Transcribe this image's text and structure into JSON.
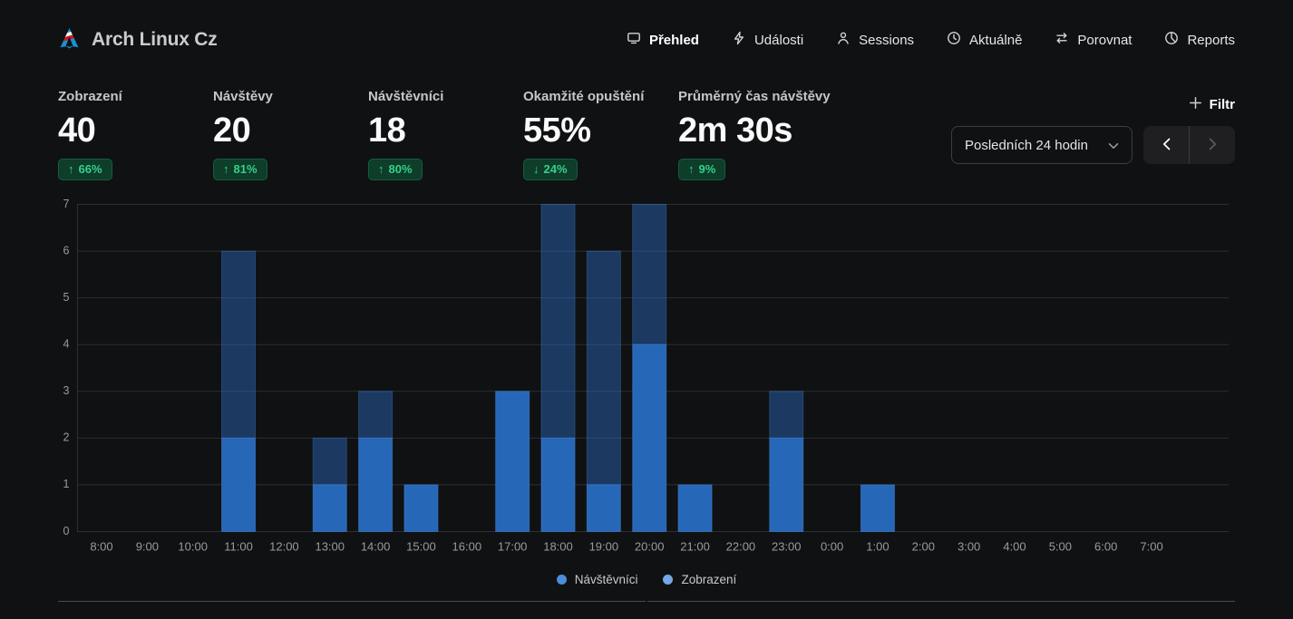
{
  "header": {
    "site_title": "Arch Linux Cz",
    "nav": [
      {
        "label": "Přehled",
        "icon": "monitor-icon",
        "active": true
      },
      {
        "label": "Události",
        "icon": "lightning-icon",
        "active": false
      },
      {
        "label": "Sessions",
        "icon": "person-icon",
        "active": false
      },
      {
        "label": "Aktuálně",
        "icon": "clock-icon",
        "active": false
      },
      {
        "label": "Porovnat",
        "icon": "compare-arrows-icon",
        "active": false
      },
      {
        "label": "Reports",
        "icon": "pie-chart-icon",
        "active": false
      }
    ]
  },
  "stats": [
    {
      "label": "Zobrazení",
      "value": "40",
      "arrow": "↑",
      "change": "66%"
    },
    {
      "label": "Návštěvy",
      "value": "20",
      "arrow": "↑",
      "change": "81%"
    },
    {
      "label": "Návštěvníci",
      "value": "18",
      "arrow": "↑",
      "change": "80%"
    },
    {
      "label": "Okamžité opuštění",
      "value": "55%",
      "arrow": "↓",
      "change": "24%"
    },
    {
      "label": "Průměrný čas návštěvy",
      "value": "2m 30s",
      "arrow": "↑",
      "change": "9%"
    }
  ],
  "controls": {
    "filter_label": "Filtr",
    "date_range": "Posledních 24 hodin"
  },
  "chart_data": {
    "type": "bar",
    "stacked": true,
    "title": "",
    "xlabel": "",
    "ylabel": "",
    "ylim": [
      0,
      7
    ],
    "yticks": [
      0,
      1,
      2,
      3,
      4,
      5,
      6,
      7
    ],
    "grid": true,
    "legend_position": "bottom",
    "categories": [
      "8:00",
      "9:00",
      "10:00",
      "11:00",
      "12:00",
      "13:00",
      "14:00",
      "15:00",
      "16:00",
      "17:00",
      "18:00",
      "19:00",
      "20:00",
      "21:00",
      "22:00",
      "23:00",
      "0:00",
      "1:00",
      "2:00",
      "3:00",
      "4:00",
      "5:00",
      "6:00",
      "7:00"
    ],
    "series": [
      {
        "name": "Návštěvníci",
        "values": [
          0,
          0,
          0,
          2,
          0,
          1,
          2,
          1,
          0,
          3,
          2,
          1,
          4,
          1,
          0,
          2,
          0,
          1,
          0,
          0,
          0,
          0,
          0,
          0
        ]
      },
      {
        "name": "Zobrazení",
        "values": [
          0,
          0,
          0,
          6,
          0,
          2,
          3,
          1,
          0,
          3,
          7,
          6,
          7,
          1,
          0,
          3,
          0,
          1,
          0,
          0,
          0,
          0,
          0,
          0
        ]
      }
    ],
    "colors": {
      "visitors_bar": "#2767b8",
      "views_overlay_opacity": 0.48,
      "bar_stroke": "#4186d9",
      "gridline": "#2e2e33",
      "tick_text": "#9a9aa0"
    },
    "legend_colors": [
      "#4a8edb",
      "#74a8e6"
    ]
  },
  "badge_colors": {
    "bg": "#0e3d2a",
    "text": "#35d189"
  },
  "brand_color": "#1793d1"
}
